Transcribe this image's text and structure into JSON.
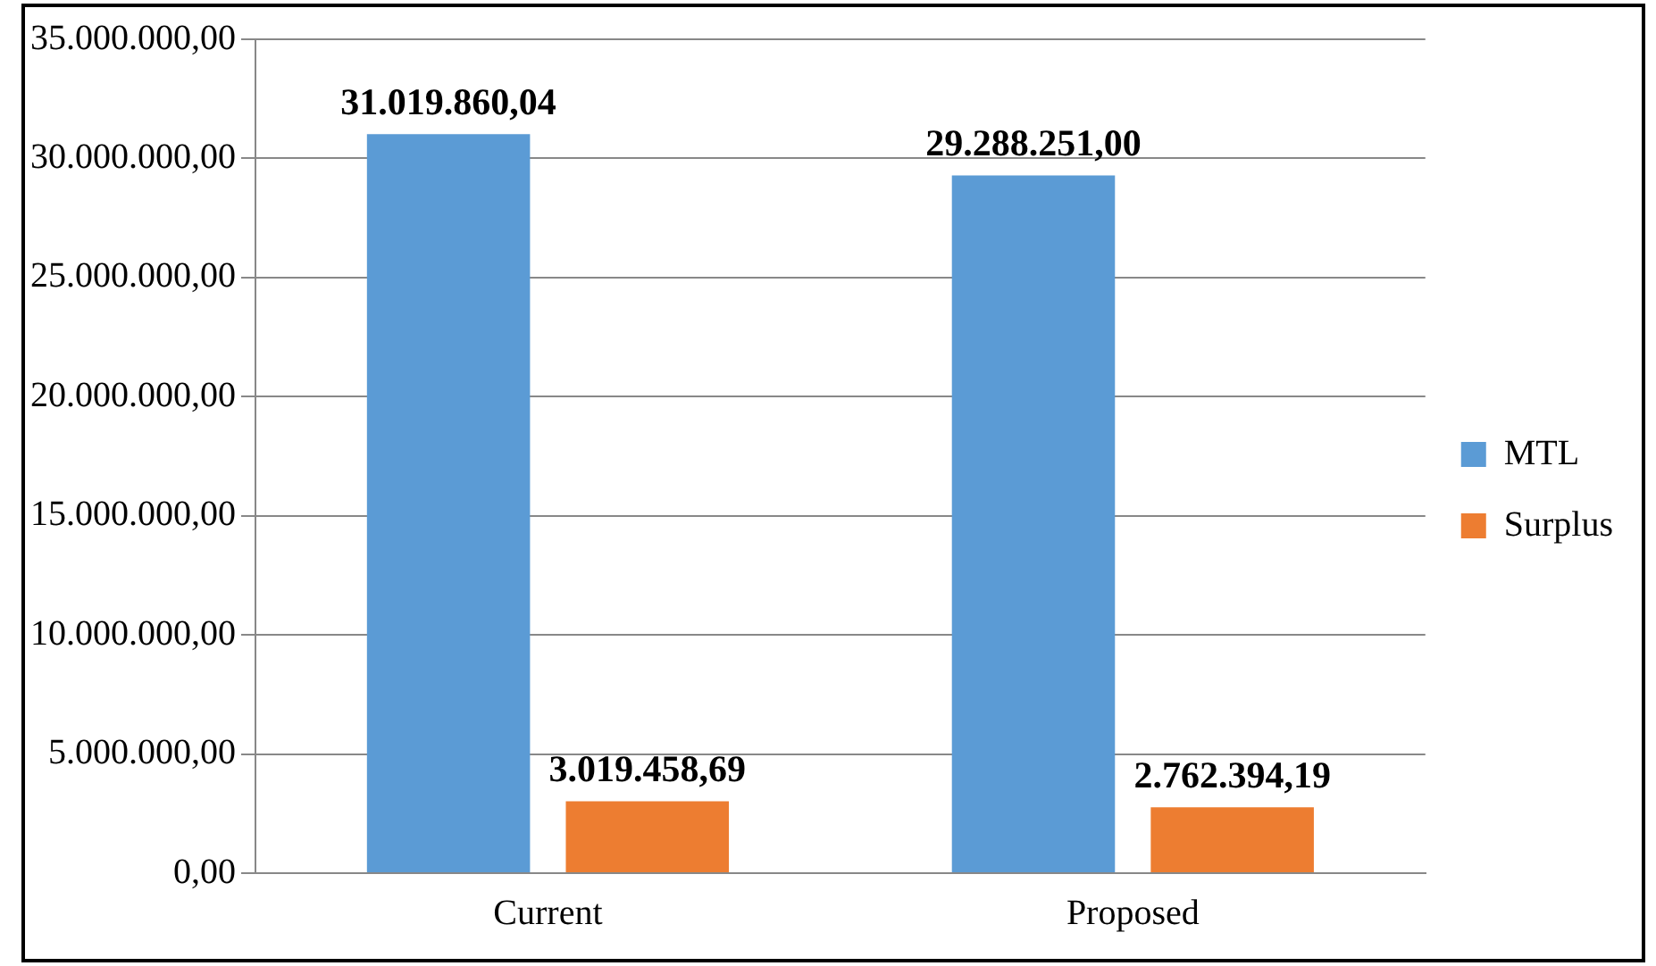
{
  "chart_data": {
    "type": "bar",
    "categories": [
      "Current",
      "Proposed"
    ],
    "series": [
      {
        "name": "MTL",
        "color": "#5b9bd5",
        "values": [
          31019860.04,
          29288251.0
        ],
        "value_labels": [
          "31.019.860,04",
          "29.288.251,00"
        ]
      },
      {
        "name": "Surplus",
        "color": "#ed7d31",
        "values": [
          3019458.69,
          2762394.19
        ],
        "value_labels": [
          "3.019.458,69",
          "2.762.394,19"
        ]
      }
    ],
    "ylim": [
      0,
      35000000
    ],
    "yticks": [
      {
        "value": 0,
        "label": "0,00"
      },
      {
        "value": 5000000,
        "label": "5.000.000,00"
      },
      {
        "value": 10000000,
        "label": "10.000.000,00"
      },
      {
        "value": 15000000,
        "label": "15.000.000,00"
      },
      {
        "value": 20000000,
        "label": "20.000.000,00"
      },
      {
        "value": 25000000,
        "label": "25.000.000,00"
      },
      {
        "value": 30000000,
        "label": "30.000.000,00"
      },
      {
        "value": 35000000,
        "label": "35.000.000,00"
      }
    ],
    "grid": "y",
    "legend": "right"
  }
}
